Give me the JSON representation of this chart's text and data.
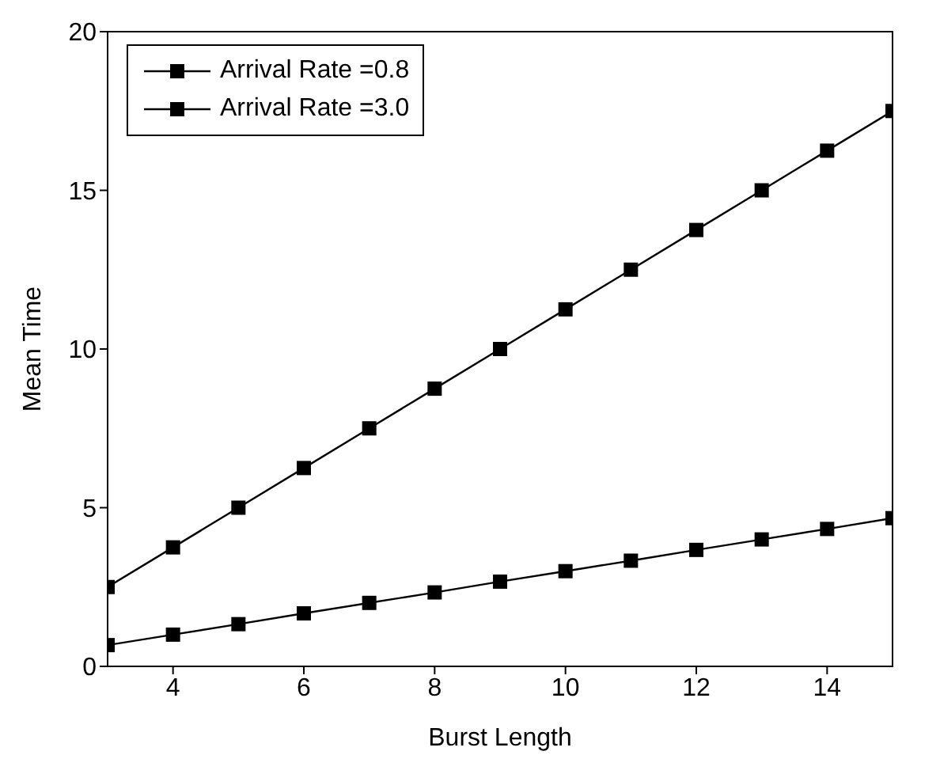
{
  "chart_data": {
    "type": "line",
    "xlabel": "Burst Length",
    "ylabel": "Mean Time",
    "x": [
      3,
      4,
      5,
      6,
      7,
      8,
      9,
      10,
      11,
      12,
      13,
      14,
      15
    ],
    "series": [
      {
        "name": "Arrival Rate =0.8",
        "color": "#000000",
        "values": [
          2.5,
          3.75,
          5,
          6.25,
          7.5,
          8.75,
          10,
          11.25,
          12.5,
          13.75,
          15,
          16.25,
          17.5
        ]
      },
      {
        "name": "Arrival Rate =3.0",
        "color": "#000000",
        "values": [
          0.67,
          1,
          1.33,
          1.67,
          2,
          2.33,
          2.67,
          3,
          3.33,
          3.67,
          4,
          4.33,
          4.67
        ]
      }
    ],
    "xlim": [
      3,
      15
    ],
    "xticks": [
      4,
      6,
      8,
      10,
      12,
      14
    ],
    "ylim": [
      0,
      20
    ],
    "yticks": [
      0,
      5,
      10,
      15,
      20
    ],
    "grid": false,
    "legend": "top left",
    "marker": "square",
    "line_style": "solid"
  }
}
